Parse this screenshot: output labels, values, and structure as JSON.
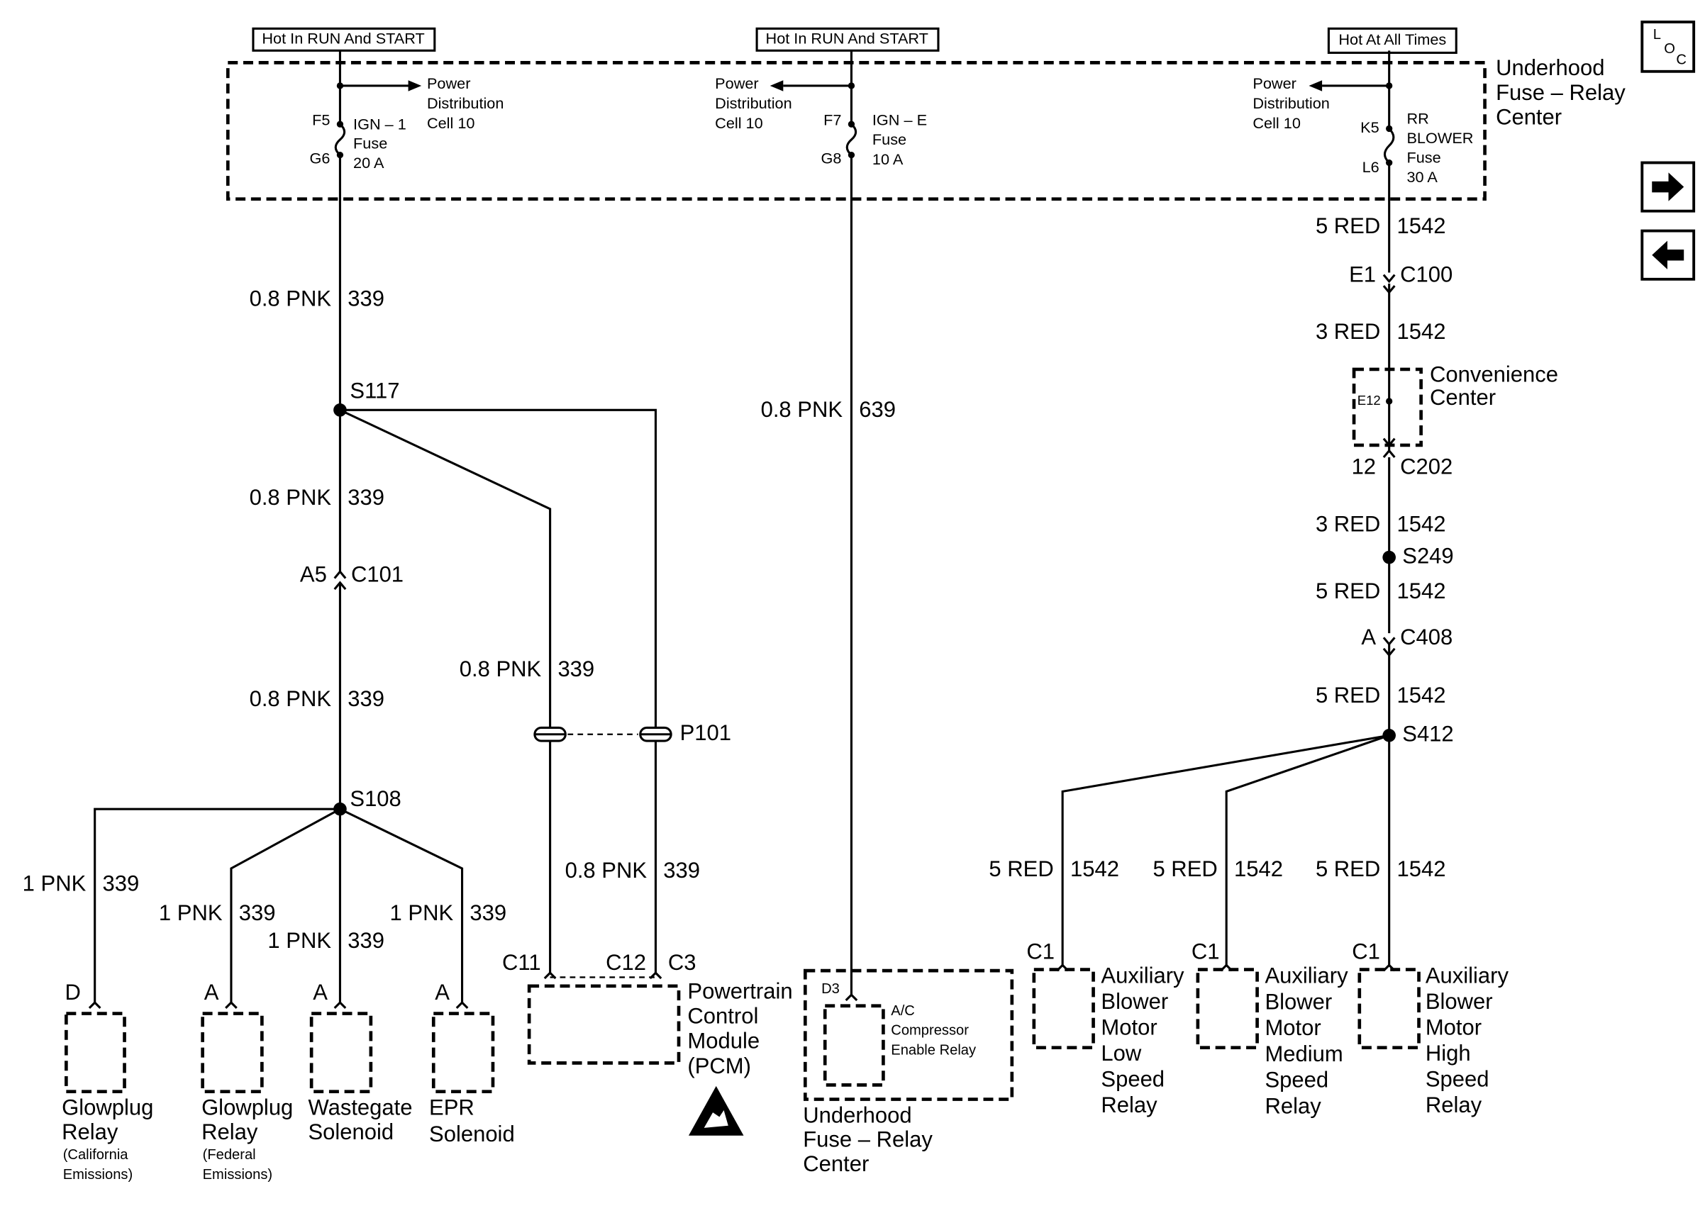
{
  "supply_headers": [
    "Hot In RUN And START",
    "Hot In RUN And START",
    "Hot At All Times"
  ],
  "loc_icon": [
    "L",
    "O",
    "C"
  ],
  "fuse_block": {
    "title": [
      "Underhood",
      "Fuse – Relay",
      "Center"
    ],
    "fuses": [
      {
        "pins": [
          "F5",
          "G6"
        ],
        "label": [
          "IGN – 1",
          "Fuse",
          "20 A"
        ],
        "feed": [
          "Power",
          "Distribution",
          "Cell 10"
        ]
      },
      {
        "pins": [
          "F7",
          "G8"
        ],
        "label": [
          "IGN – E",
          "Fuse",
          "10 A"
        ],
        "feed": [
          "Power",
          "Distribution",
          "Cell 10"
        ]
      },
      {
        "pins": [
          "K5",
          "L6"
        ],
        "label": [
          "RR",
          "BLOWER",
          "Fuse",
          "30 A"
        ],
        "feed": [
          "Power",
          "Distribution",
          "Cell 10"
        ]
      }
    ]
  },
  "wires": [
    {
      "size": "0.8 PNK",
      "circuit": "339"
    },
    {
      "size": "0.8 PNK",
      "circuit": "339"
    },
    {
      "size": "0.8 PNK",
      "circuit": "339"
    },
    {
      "size": "0.8 PNK",
      "circuit": "339"
    },
    {
      "size": "0.8 PNK",
      "circuit": "339"
    },
    {
      "size": "0.8 PNK",
      "circuit": "639"
    },
    {
      "size": "1 PNK",
      "circuit": "339"
    },
    {
      "size": "1 PNK",
      "circuit": "339"
    },
    {
      "size": "1 PNK",
      "circuit": "339"
    },
    {
      "size": "1 PNK",
      "circuit": "339"
    },
    {
      "size": "5 RED",
      "circuit": "1542"
    },
    {
      "size": "3 RED",
      "circuit": "1542"
    },
    {
      "size": "3 RED",
      "circuit": "1542"
    },
    {
      "size": "5 RED",
      "circuit": "1542"
    },
    {
      "size": "5 RED",
      "circuit": "1542"
    },
    {
      "size": "5 RED",
      "circuit": "1542"
    },
    {
      "size": "5 RED",
      "circuit": "1542"
    },
    {
      "size": "5 RED",
      "circuit": "1542"
    }
  ],
  "connectors": [
    {
      "pin": "A5",
      "name": "C101"
    },
    {
      "pin": "E1",
      "name": "C100"
    },
    {
      "pin": "12",
      "name": "C202"
    },
    {
      "pin": "A",
      "name": "C408"
    },
    {
      "name": "P101"
    }
  ],
  "splices": [
    "S117",
    "S108",
    "S249",
    "S412"
  ],
  "convenience_center": {
    "pins": [
      "E12"
    ],
    "label": [
      "Convenience",
      "Center"
    ]
  },
  "components": [
    {
      "pins": [
        "D"
      ],
      "label": [
        "Glowplug",
        "Relay"
      ],
      "note": [
        "(California",
        "Emissions)"
      ]
    },
    {
      "pins": [
        "A"
      ],
      "label": [
        "Glowplug",
        "Relay"
      ],
      "note": [
        "(Federal",
        "Emissions)"
      ]
    },
    {
      "pins": [
        "A"
      ],
      "label": [
        "Wastegate",
        "Solenoid"
      ]
    },
    {
      "pins": [
        "A"
      ],
      "label": [
        "EPR",
        "Solenoid"
      ]
    },
    {
      "pins": [
        "C11",
        "C12",
        "C3"
      ],
      "label": [
        "Powertrain",
        "Control",
        "Module",
        "(PCM)"
      ]
    },
    {
      "pins": [
        "D3"
      ],
      "label": [
        "Underhood",
        "Fuse – Relay",
        "Center"
      ],
      "relay": [
        "A/C",
        "Compressor",
        "Enable Relay"
      ]
    },
    {
      "pins": [
        "C1"
      ],
      "label": [
        "Auxiliary",
        "Blower",
        "Motor",
        "Low",
        "Speed",
        "Relay"
      ]
    },
    {
      "pins": [
        "C1"
      ],
      "label": [
        "Auxiliary",
        "Blower",
        "Motor",
        "Medium",
        "Speed",
        "Relay"
      ]
    },
    {
      "pins": [
        "C1"
      ],
      "label": [
        "Auxiliary",
        "Blower",
        "Motor",
        "High",
        "Speed",
        "Relay"
      ]
    }
  ]
}
